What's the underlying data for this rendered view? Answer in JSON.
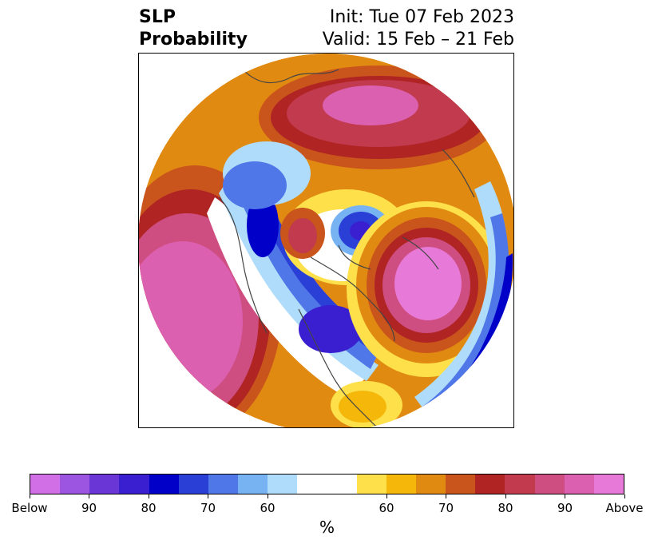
{
  "title": {
    "left_line1": "SLP",
    "left_line2": "Probability",
    "right_line1": "Init: Tue 07 Feb 2023",
    "right_line2": "Valid: 15 Feb – 21 Feb"
  },
  "colorbar": {
    "below_colors": [
      "#d16fe6",
      "#9b55e0",
      "#6a37d6",
      "#3a1fd1",
      "#0000c8",
      "#2a3fd6",
      "#4f77e8",
      "#77b3f2",
      "#afdcfa"
    ],
    "above_colors": [
      "#fde04a",
      "#f4b70a",
      "#e18a12",
      "#c9541c",
      "#b02424",
      "#c23a4e",
      "#cf4e82",
      "#dc60b0",
      "#e77ad8"
    ],
    "tick_labels": [
      "Below",
      "90",
      "80",
      "70",
      "60",
      "60",
      "70",
      "80",
      "90",
      "Above"
    ],
    "unit_label": "%"
  },
  "map": {
    "projection": "north-polar-stereographic",
    "field": "SLP probability",
    "regions": [
      {
        "name": "north-pacific-high",
        "sign": "above",
        "max_category": "Above"
      },
      {
        "name": "western-north-america-low",
        "sign": "below",
        "max_category": "80"
      },
      {
        "name": "eurasia-arctic-high",
        "sign": "above",
        "max_category": "90"
      },
      {
        "name": "greenland-north-atlantic-high",
        "sign": "above",
        "max_category": "Above"
      },
      {
        "name": "barents-low",
        "sign": "below",
        "max_category": "80"
      },
      {
        "name": "siberia-high-cell",
        "sign": "above",
        "max_category": "80"
      },
      {
        "name": "europe-low",
        "sign": "below",
        "max_category": "70"
      }
    ]
  }
}
